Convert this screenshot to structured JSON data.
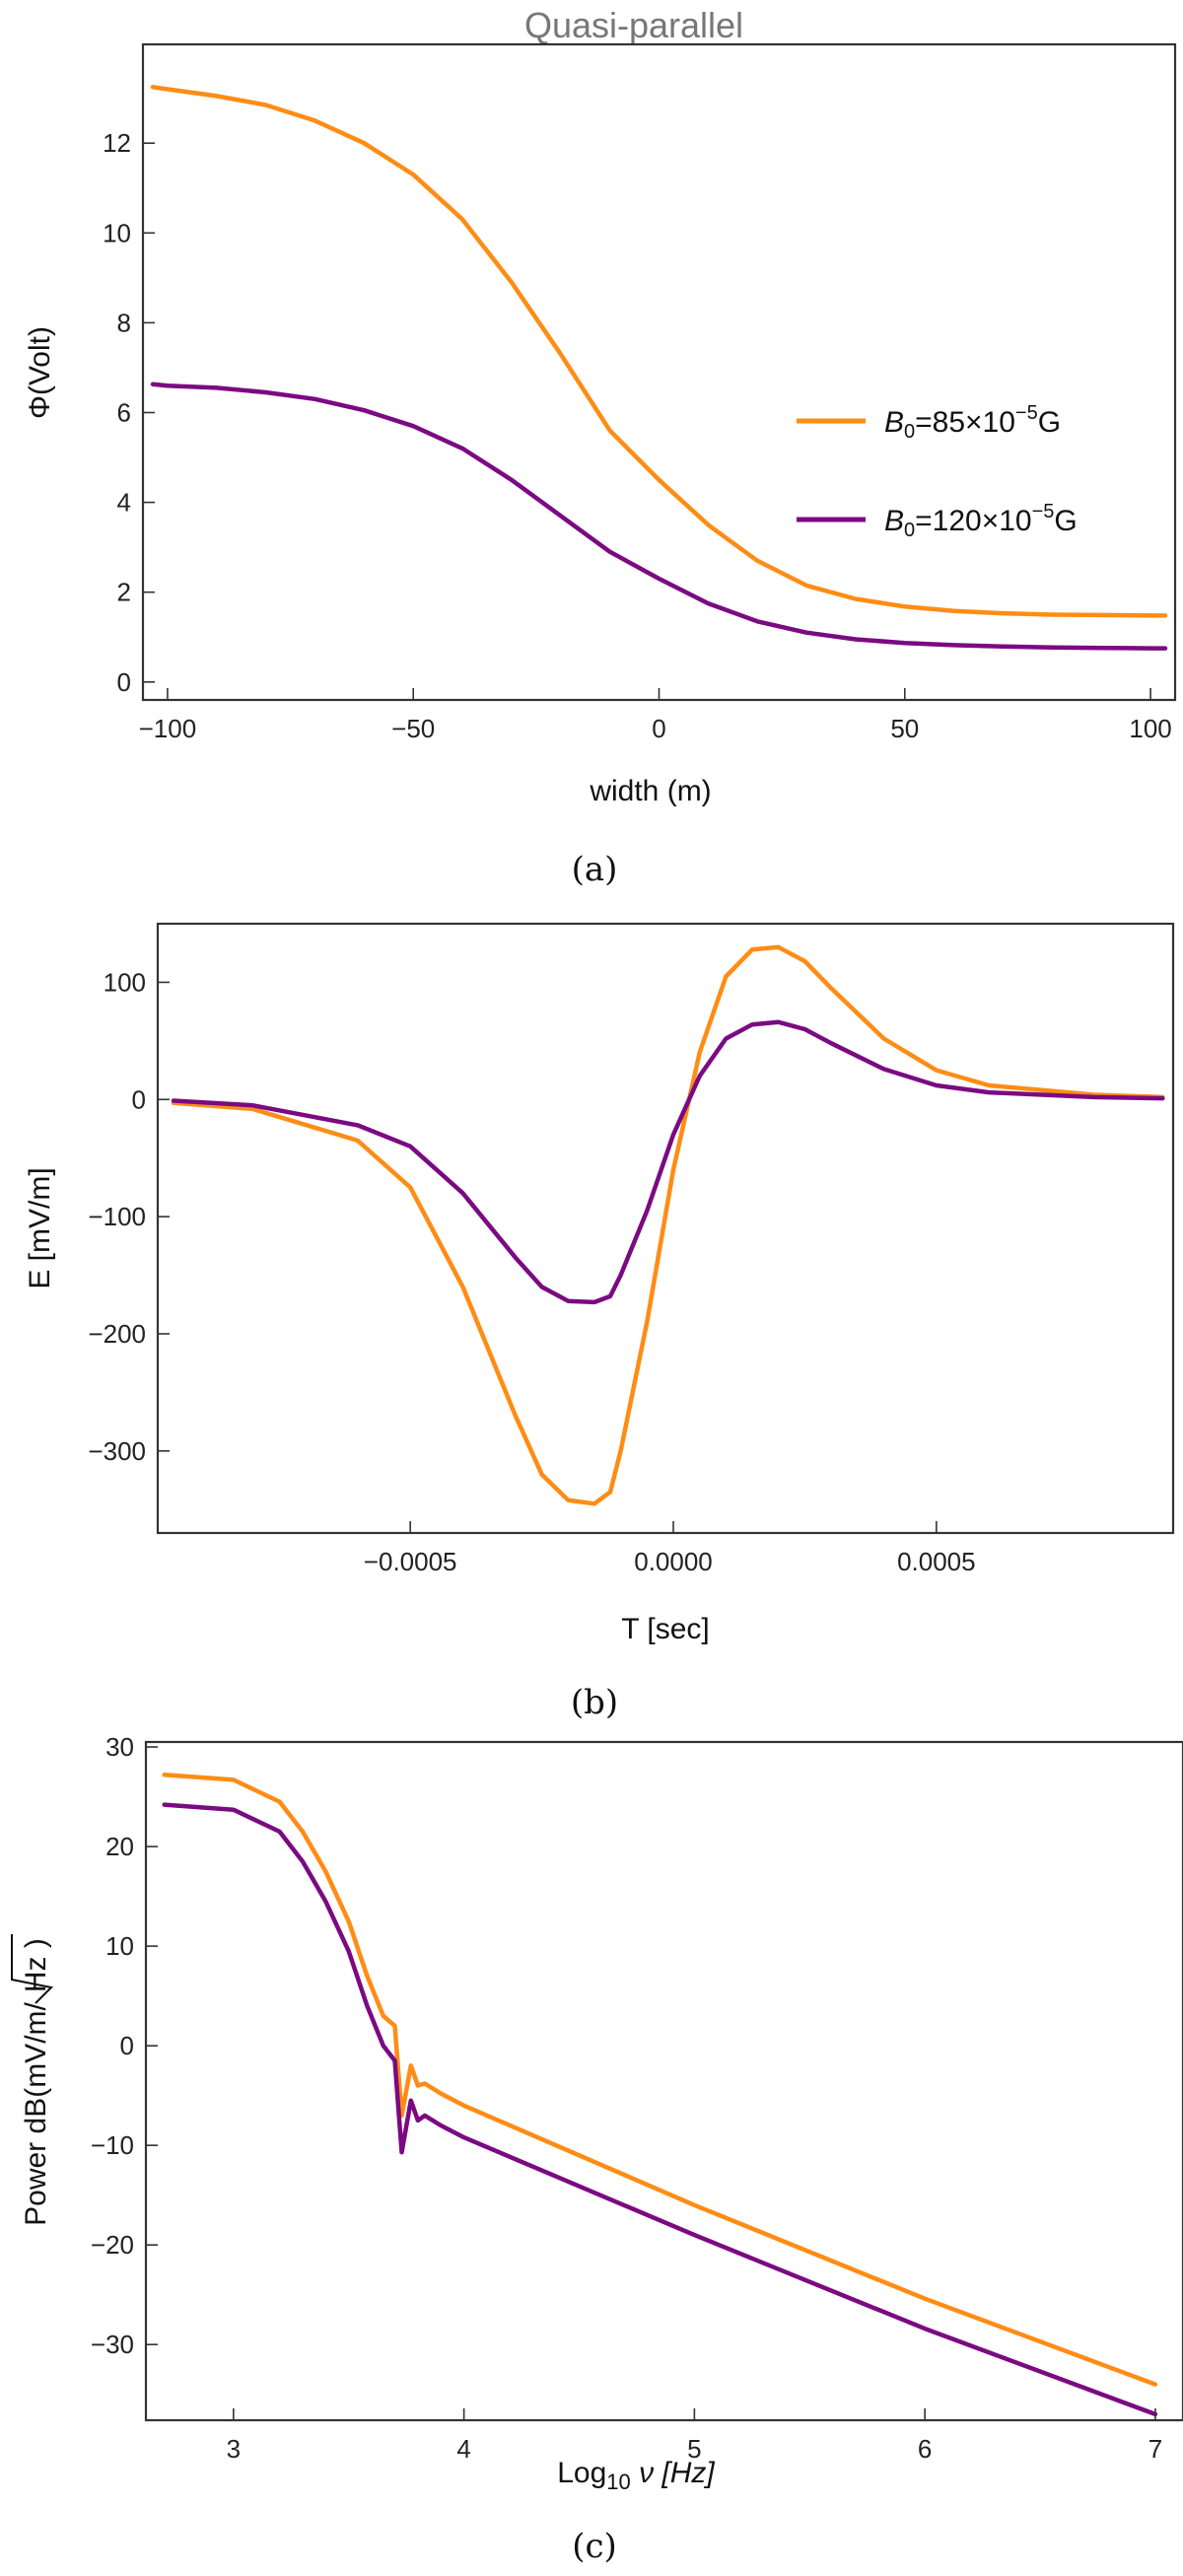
{
  "colors": {
    "orange": "#FF8C14",
    "purple": "#7B0A82"
  },
  "chart_data": [
    {
      "type": "line",
      "title": "Quasi-parallel",
      "xlabel": "width (m)",
      "ylabel": "Φ(Volt)",
      "caption": "(a)",
      "xlim": [
        -105,
        105
      ],
      "ylim": [
        -0.4,
        14.2
      ],
      "xticks": [
        -100,
        -50,
        0,
        50,
        100
      ],
      "xtick_labels": [
        "−100",
        "−50",
        "0",
        "50",
        "100"
      ],
      "yticks": [
        0,
        2,
        4,
        6,
        8,
        10,
        12
      ],
      "ytick_labels": [
        "0",
        "2",
        "4",
        "6",
        "8",
        "10",
        "12"
      ],
      "legend_position": "right",
      "legend": [
        {
          "base": "B",
          "sub": "0",
          "mid": "=85×10",
          "sup": "−5",
          "tail": "G",
          "color": "#FF8C14"
        },
        {
          "base": "B",
          "sub": "0",
          "mid": "=120×10",
          "sup": "−5",
          "tail": "G",
          "color": "#7B0A82"
        }
      ],
      "series": [
        {
          "color": "#FF8C14",
          "x": [
            -103,
            -100,
            -90,
            -80,
            -70,
            -60,
            -50,
            -40,
            -30,
            -20,
            -10,
            0,
            10,
            20,
            30,
            40,
            50,
            60,
            70,
            80,
            90,
            100,
            103
          ],
          "y": [
            13.25,
            13.2,
            13.05,
            12.85,
            12.5,
            12.0,
            11.3,
            10.3,
            8.9,
            7.3,
            5.6,
            4.5,
            3.5,
            2.7,
            2.15,
            1.85,
            1.68,
            1.58,
            1.53,
            1.5,
            1.49,
            1.48,
            1.48
          ]
        },
        {
          "color": "#7B0A82",
          "x": [
            -103,
            -100,
            -90,
            -80,
            -70,
            -60,
            -50,
            -40,
            -30,
            -20,
            -10,
            0,
            10,
            20,
            30,
            40,
            50,
            60,
            70,
            80,
            90,
            100,
            103
          ],
          "y": [
            6.63,
            6.6,
            6.55,
            6.45,
            6.3,
            6.05,
            5.7,
            5.2,
            4.5,
            3.7,
            2.9,
            2.3,
            1.75,
            1.35,
            1.1,
            0.95,
            0.87,
            0.82,
            0.79,
            0.77,
            0.76,
            0.75,
            0.75
          ]
        }
      ]
    },
    {
      "type": "line",
      "xlabel": "T [sec]",
      "ylabel": "E [mV/m]",
      "caption": "(b)",
      "xlim": [
        -0.00098,
        0.00095
      ],
      "ylim": [
        -370,
        150
      ],
      "xticks": [
        -0.0005,
        0.0,
        0.0005
      ],
      "xtick_labels": [
        "−0.0005",
        "0.0000",
        "0.0005"
      ],
      "yticks": [
        -300,
        -200,
        -100,
        0,
        100
      ],
      "ytick_labels": [
        "−300",
        "−200",
        "−100",
        "0",
        "100"
      ],
      "series": [
        {
          "color": "#FF8C14",
          "x": [
            -0.00095,
            -0.0008,
            -0.0006,
            -0.0005,
            -0.0004,
            -0.0003,
            -0.00025,
            -0.0002,
            -0.00015,
            -0.00012,
            -0.0001,
            -5e-05,
            0.0,
            5e-05,
            0.0001,
            0.00015,
            0.0002,
            0.00025,
            0.0003,
            0.0004,
            0.0005,
            0.0006,
            0.0008,
            0.00093
          ],
          "y": [
            -3,
            -8,
            -35,
            -75,
            -160,
            -270,
            -320,
            -342,
            -345,
            -335,
            -300,
            -190,
            -60,
            40,
            105,
            128,
            130,
            118,
            95,
            52,
            25,
            12,
            4,
            2
          ]
        },
        {
          "color": "#7B0A82",
          "x": [
            -0.00095,
            -0.0008,
            -0.0006,
            -0.0005,
            -0.0004,
            -0.0003,
            -0.00025,
            -0.0002,
            -0.00015,
            -0.00012,
            -0.0001,
            -5e-05,
            0.0,
            5e-05,
            0.0001,
            0.00015,
            0.0002,
            0.00025,
            0.0003,
            0.0004,
            0.0005,
            0.0006,
            0.0008,
            0.00093
          ],
          "y": [
            -1,
            -5,
            -22,
            -40,
            -80,
            -135,
            -160,
            -172,
            -173,
            -168,
            -150,
            -95,
            -30,
            20,
            52,
            64,
            66,
            60,
            48,
            26,
            12,
            6,
            2,
            1
          ]
        }
      ]
    },
    {
      "type": "line",
      "xlabel": {
        "pre": "Log",
        "sub": "10",
        "post": " ν [Hz]"
      },
      "ylabel": {
        "pre": "Power dB(mV/m/",
        "rad": "Hz",
        "post": " )"
      },
      "caption": "(c)",
      "xlim": [
        2.62,
        7.12
      ],
      "ylim": [
        -37.6,
        30.5
      ],
      "xticks": [
        3,
        4,
        5,
        6,
        7
      ],
      "xtick_labels": [
        "3",
        "4",
        "5",
        "6",
        "7"
      ],
      "yticks": [
        -30,
        -20,
        -10,
        0,
        10,
        20,
        30
      ],
      "ytick_labels": [
        "−30",
        "−20",
        "−10",
        "0",
        "10",
        "20",
        "30"
      ],
      "series": [
        {
          "color": "#FF8C14",
          "x": [
            2.7,
            3.0,
            3.2,
            3.3,
            3.4,
            3.5,
            3.58,
            3.65,
            3.7,
            3.73,
            3.77,
            3.8,
            3.83,
            3.9,
            4.0,
            5.0,
            6.0,
            7.0
          ],
          "y": [
            27.2,
            26.7,
            24.5,
            21.5,
            17.5,
            12.5,
            7,
            3,
            2,
            -7,
            -2,
            -4,
            -3.8,
            -4.8,
            -6,
            -16,
            -25.4,
            -34
          ]
        },
        {
          "color": "#7B0A82",
          "x": [
            2.7,
            3.0,
            3.2,
            3.3,
            3.4,
            3.5,
            3.58,
            3.65,
            3.7,
            3.73,
            3.77,
            3.8,
            3.83,
            3.9,
            4.0,
            5.0,
            6.0,
            7.0
          ],
          "y": [
            24.2,
            23.7,
            21.5,
            18.5,
            14.5,
            9.5,
            4,
            0,
            -1.5,
            -10.7,
            -5.5,
            -7.5,
            -7,
            -8,
            -9.2,
            -19,
            -28.4,
            -37
          ]
        }
      ]
    }
  ]
}
